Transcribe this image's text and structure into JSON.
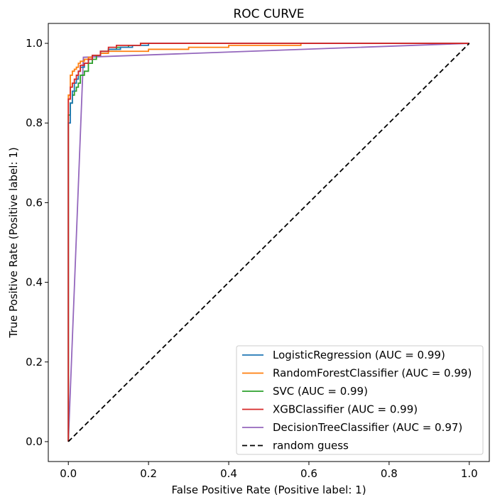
{
  "chart_data": {
    "type": "line",
    "title": "ROC CURVE",
    "xlabel": "False Positive Rate (Positive label: 1)",
    "ylabel": "True Positive Rate (Positive label: 1)",
    "xlim": [
      -0.05,
      1.05
    ],
    "ylim": [
      -0.05,
      1.05
    ],
    "xticks": [
      "0.0",
      "0.2",
      "0.4",
      "0.6",
      "0.8",
      "1.0"
    ],
    "yticks": [
      "0.0",
      "0.2",
      "0.4",
      "0.6",
      "0.8",
      "1.0"
    ],
    "grid": false,
    "legend_position": "bottom-right",
    "series": [
      {
        "name": "LogisticRegression (AUC = 0.99)",
        "color": "#1f77b4",
        "style": "solid",
        "x": [
          0,
          0,
          0.005,
          0.005,
          0.01,
          0.01,
          0.015,
          0.015,
          0.02,
          0.025,
          0.03,
          0.04,
          0.05,
          0.06,
          0.08,
          0.1,
          0.13,
          0.16,
          0.2,
          0.22,
          0.25,
          0.3,
          1.0
        ],
        "y": [
          0,
          0.78,
          0.8,
          0.84,
          0.85,
          0.87,
          0.88,
          0.89,
          0.9,
          0.91,
          0.93,
          0.94,
          0.95,
          0.96,
          0.97,
          0.98,
          0.985,
          0.99,
          0.995,
          1.0,
          1.0,
          1.0,
          1.0
        ]
      },
      {
        "name": "RandomForestClassifier (AUC = 0.99)",
        "color": "#ff7f0e",
        "style": "solid",
        "x": [
          0,
          0,
          0.005,
          0.005,
          0.01,
          0.015,
          0.02,
          0.025,
          0.03,
          0.04,
          0.05,
          0.06,
          0.08,
          0.1,
          0.15,
          0.2,
          0.25,
          0.3,
          0.35,
          0.4,
          0.5,
          0.58,
          0.59,
          1.0
        ],
        "y": [
          0,
          0.86,
          0.87,
          0.9,
          0.92,
          0.93,
          0.935,
          0.94,
          0.95,
          0.955,
          0.96,
          0.965,
          0.97,
          0.975,
          0.98,
          0.98,
          0.985,
          0.985,
          0.99,
          0.99,
          0.995,
          0.995,
          1.0,
          1.0
        ]
      },
      {
        "name": "SVC (AUC = 0.99)",
        "color": "#2ca02c",
        "style": "solid",
        "x": [
          0,
          0,
          0.005,
          0.01,
          0.015,
          0.02,
          0.025,
          0.03,
          0.04,
          0.05,
          0.06,
          0.07,
          0.08,
          0.1,
          0.12,
          0.15,
          0.18,
          0.2,
          0.25,
          1.0
        ],
        "y": [
          0,
          0.8,
          0.82,
          0.85,
          0.87,
          0.88,
          0.89,
          0.9,
          0.92,
          0.93,
          0.95,
          0.96,
          0.97,
          0.98,
          0.985,
          0.99,
          0.995,
          1.0,
          1.0,
          1.0
        ]
      },
      {
        "name": "XGBClassifier (AUC = 0.99)",
        "color": "#d62728",
        "style": "solid",
        "x": [
          0,
          0,
          0.005,
          0.005,
          0.01,
          0.015,
          0.02,
          0.025,
          0.03,
          0.04,
          0.05,
          0.06,
          0.08,
          0.1,
          0.12,
          0.15,
          0.18,
          0.2,
          0.25,
          1.0
        ],
        "y": [
          0,
          0.77,
          0.86,
          0.88,
          0.89,
          0.9,
          0.91,
          0.92,
          0.93,
          0.945,
          0.95,
          0.96,
          0.97,
          0.98,
          0.99,
          0.995,
          0.995,
          1.0,
          1.0,
          1.0
        ]
      },
      {
        "name": "DecisionTreeClassifier (AUC = 0.97)",
        "color": "#9467bd",
        "style": "solid",
        "x": [
          0,
          0.0375,
          1.0
        ],
        "y": [
          0,
          0.965,
          1.0
        ]
      },
      {
        "name": "random guess",
        "color": "#000000",
        "style": "dashed",
        "x": [
          0,
          1
        ],
        "y": [
          0,
          1
        ]
      }
    ]
  }
}
